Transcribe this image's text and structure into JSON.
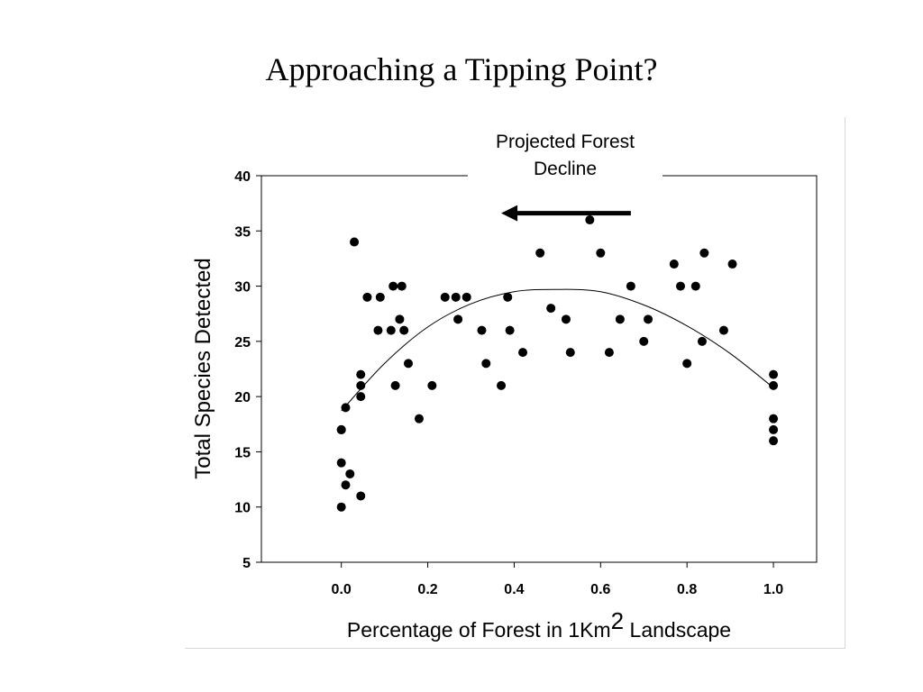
{
  "slide": {
    "title": "Approaching a Tipping Point?"
  },
  "chart_data": {
    "type": "scatter",
    "xlabel": {
      "prefix": "Percentage of Forest in 1Km",
      "superscript": "2",
      "suffix": " Landscape"
    },
    "ylabel": "Total Species Detected",
    "xlim": [
      -0.185,
      1.1
    ],
    "ylim": [
      5,
      40
    ],
    "x_ticks": [
      0.0,
      0.2,
      0.4,
      0.6,
      0.8,
      1.0
    ],
    "x_tick_labels": [
      "0.0",
      "0.2",
      "0.4",
      "0.6",
      "0.8",
      "1.0"
    ],
    "y_ticks": [
      5,
      10,
      15,
      20,
      25,
      30,
      35,
      40
    ],
    "y_tick_labels": [
      "5",
      "10",
      "15",
      "20",
      "25",
      "30",
      "35",
      "40"
    ],
    "grid": false,
    "marker_color": "#000000",
    "annotation": {
      "lines": [
        "Projected Forest",
        "Decline"
      ],
      "arrow": {
        "from": [
          0.67,
          36.6
        ],
        "to": [
          0.37,
          36.6
        ],
        "direction": "left"
      }
    },
    "series": [
      {
        "points": [
          [
            0.0,
            10
          ],
          [
            0.0,
            14
          ],
          [
            0.0,
            17
          ],
          [
            0.0,
            17
          ],
          [
            0.01,
            12
          ],
          [
            0.01,
            19
          ],
          [
            0.02,
            13
          ],
          [
            0.03,
            34
          ],
          [
            0.045,
            11
          ],
          [
            0.045,
            20
          ],
          [
            0.045,
            21
          ],
          [
            0.045,
            22
          ],
          [
            0.06,
            29
          ],
          [
            0.085,
            26
          ],
          [
            0.09,
            29
          ],
          [
            0.115,
            26
          ],
          [
            0.12,
            30
          ],
          [
            0.125,
            21
          ],
          [
            0.135,
            27
          ],
          [
            0.14,
            30
          ],
          [
            0.145,
            26
          ],
          [
            0.155,
            23
          ],
          [
            0.18,
            18
          ],
          [
            0.21,
            21
          ],
          [
            0.24,
            29
          ],
          [
            0.265,
            29
          ],
          [
            0.27,
            27
          ],
          [
            0.29,
            29
          ],
          [
            0.325,
            26
          ],
          [
            0.335,
            23
          ],
          [
            0.37,
            21
          ],
          [
            0.385,
            29
          ],
          [
            0.39,
            26
          ],
          [
            0.42,
            24
          ],
          [
            0.46,
            33
          ],
          [
            0.485,
            28
          ],
          [
            0.52,
            27
          ],
          [
            0.53,
            24
          ],
          [
            0.575,
            36
          ],
          [
            0.6,
            33
          ],
          [
            0.62,
            24
          ],
          [
            0.645,
            27
          ],
          [
            0.67,
            30
          ],
          [
            0.7,
            25
          ],
          [
            0.71,
            27
          ],
          [
            0.77,
            32
          ],
          [
            0.785,
            30
          ],
          [
            0.8,
            23
          ],
          [
            0.82,
            30
          ],
          [
            0.835,
            25
          ],
          [
            0.84,
            33
          ],
          [
            0.885,
            26
          ],
          [
            0.905,
            32
          ],
          [
            1.0,
            16
          ],
          [
            1.0,
            17
          ],
          [
            1.0,
            18
          ],
          [
            1.0,
            21
          ],
          [
            1.0,
            22
          ]
        ]
      }
    ],
    "fit_curve": {
      "type": "quadratic",
      "points": [
        [
          0.0,
          18.7
        ],
        [
          0.1,
          23.0
        ],
        [
          0.2,
          26.3
        ],
        [
          0.3,
          28.4
        ],
        [
          0.4,
          29.5
        ],
        [
          0.5,
          29.7
        ],
        [
          0.6,
          29.5
        ],
        [
          0.7,
          28.3
        ],
        [
          0.8,
          26.4
        ],
        [
          0.9,
          23.9
        ],
        [
          1.0,
          20.8
        ]
      ]
    }
  }
}
